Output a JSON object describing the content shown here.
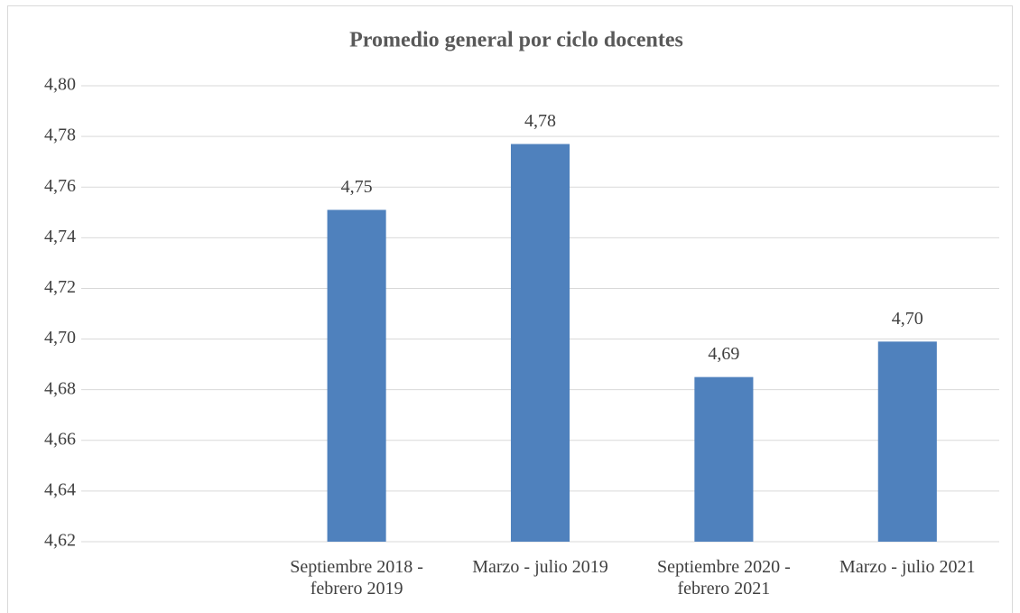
{
  "chart_data": {
    "type": "bar",
    "title": "Promedio general por ciclo docentes",
    "categories": [
      null,
      "Septiembre 2018 - febrero 2019",
      "Marzo - julio 2019",
      "Septiembre 2020 - febrero 2021",
      "Marzo - julio 2021"
    ],
    "values": [
      null,
      4.751,
      4.777,
      4.685,
      4.699
    ],
    "value_labels": [
      null,
      "4,75",
      "4,78",
      "4,69",
      "4,70"
    ],
    "color": "#4f81bd",
    "ylim": [
      4.62,
      4.8
    ],
    "yticks": [
      {
        "value": 4.62,
        "label": "4,62"
      },
      {
        "value": 4.64,
        "label": "4,64"
      },
      {
        "value": 4.66,
        "label": "4,66"
      },
      {
        "value": 4.68,
        "label": "4,68"
      },
      {
        "value": 4.7,
        "label": "4,70"
      },
      {
        "value": 4.72,
        "label": "4,72"
      },
      {
        "value": 4.74,
        "label": "4,74"
      },
      {
        "value": 4.76,
        "label": "4,76"
      },
      {
        "value": 4.78,
        "label": "4,78"
      },
      {
        "value": 4.8,
        "label": "4,80"
      }
    ],
    "grid": true
  }
}
